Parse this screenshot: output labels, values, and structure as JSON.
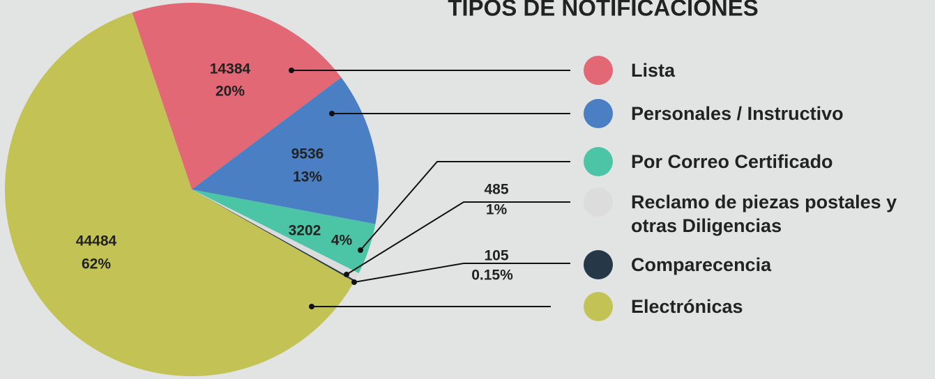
{
  "chart_data": {
    "type": "pie",
    "title": "TIPOS DE NOTIFICACIONES",
    "categories": [
      "Lista",
      "Personales / Instructivo",
      "Por Correo Certificado",
      "Reclamo de piezas postales y otras Diligencias",
      "Comparecencia",
      "Electrónicas"
    ],
    "values": [
      14384,
      9536,
      3202,
      485,
      105,
      44484
    ],
    "percent_labels": [
      "20%",
      "13%",
      "4%",
      "1%",
      "0.15%",
      "62%"
    ],
    "colors": [
      "#e36876",
      "#4a7fc4",
      "#4cc5a6",
      "#dcdcdc",
      "#263848",
      "#c2c354"
    ]
  }
}
